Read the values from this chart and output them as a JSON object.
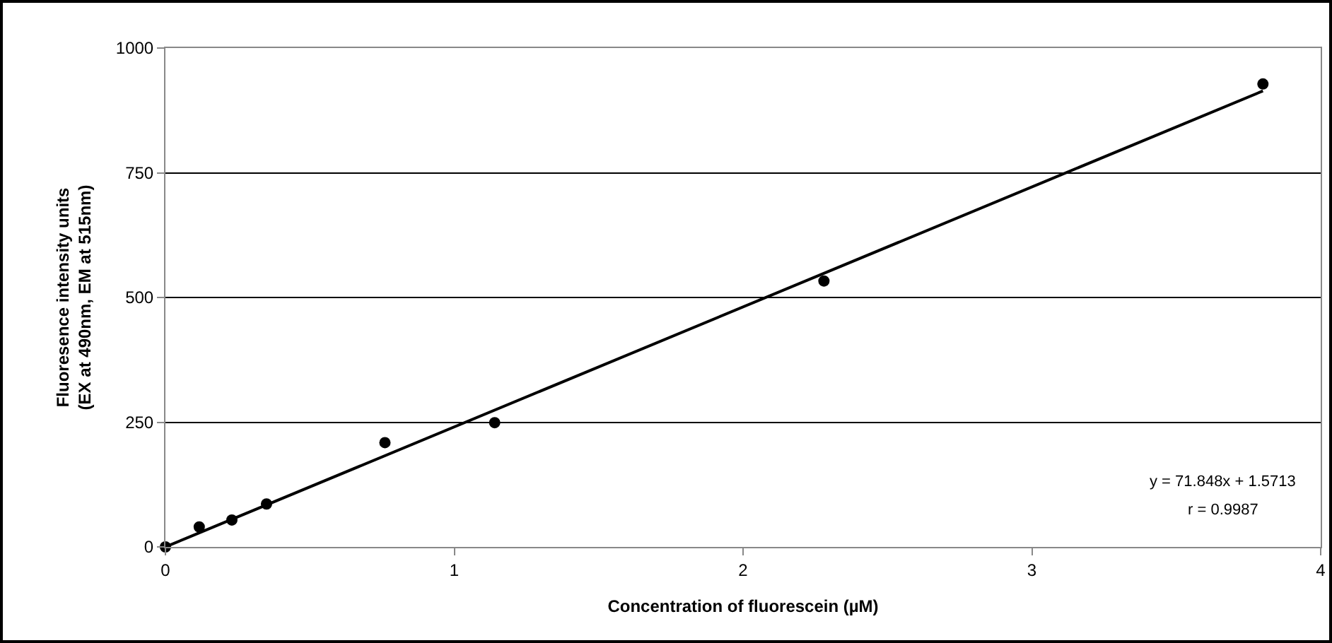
{
  "chart_data": {
    "type": "scatter",
    "xlabel": "Concentration of fluorescein (µM)",
    "ylabel": "Fluoresence intensity units\n(EX at 490nm, EM at 515nm)",
    "xlim": [
      0,
      4
    ],
    "xticks": [
      0,
      1,
      2,
      3,
      4
    ],
    "ylim": [
      0,
      1000
    ],
    "yticks": [
      0,
      250,
      500,
      750,
      1000
    ],
    "grid": "y",
    "marker": "circle",
    "series": [
      {
        "color": "#000000",
        "x": [
          0,
          0.117,
          0.23,
          0.35,
          0.76,
          1.14,
          2.28,
          3.8
        ],
        "values": [
          0,
          40,
          54,
          86,
          209,
          249,
          533,
          928
        ]
      },
      {
        "type": "line",
        "color": "#000000",
        "x": [
          0,
          3.8
        ],
        "values": [
          0,
          914
        ],
        "marker": "none",
        "line_style": "solid"
      }
    ],
    "annotations": [
      "y = 71.848x + 1.5713",
      "r = 0.9987"
    ]
  }
}
